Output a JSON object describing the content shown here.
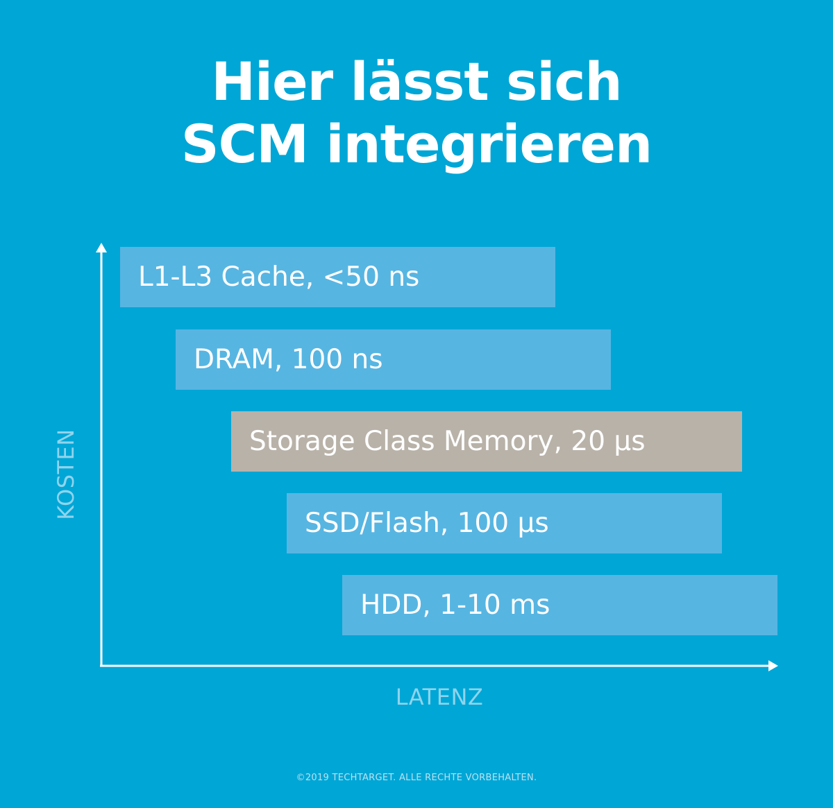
{
  "title": {
    "line1": "Hier lässt sich",
    "line2": "SCM integrieren"
  },
  "axes": {
    "x_label": "LATENZ",
    "y_label": "KOSTEN"
  },
  "tiers": [
    {
      "label": "L1-L3 Cache, <50 ns",
      "color": "#57b5e2"
    },
    {
      "label": "DRAM, 100 ns",
      "color": "#57b5e2"
    },
    {
      "label": "Storage Class Memory, 20 µs",
      "color": "#b9b2a9"
    },
    {
      "label": "SSD/Flash, 100 µs",
      "color": "#57b5e2"
    },
    {
      "label": "HDD, 1-10 ms",
      "color": "#57b5e2"
    }
  ],
  "footer": "©2019 TECHTARGET. ALLE RECHTE VORBEHALTEN.",
  "colors": {
    "background": "#00a6d6",
    "axis": "#ffffff",
    "axis_label": "#8fd4ec"
  }
}
